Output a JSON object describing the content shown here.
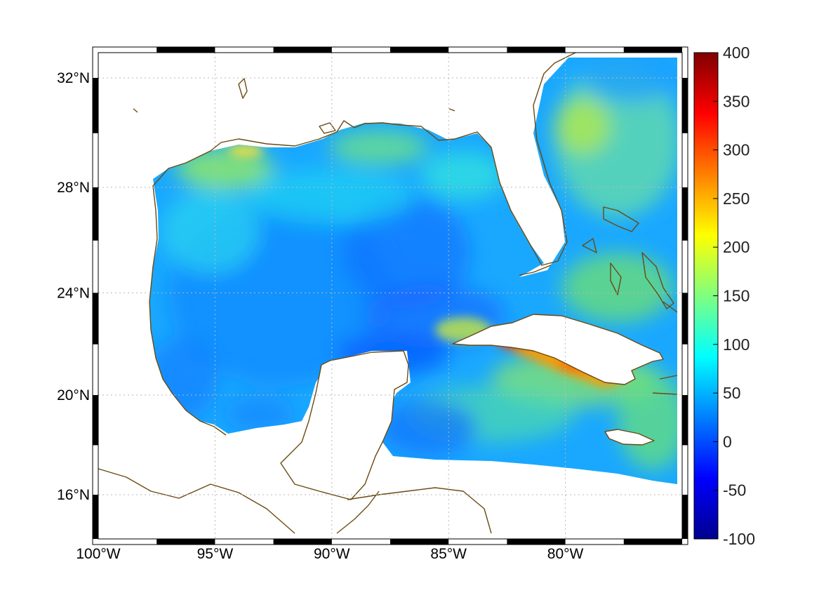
{
  "map": {
    "region": "Gulf of Mexico",
    "lon_range": [
      -100,
      -75
    ],
    "lat_range": [
      14.2,
      32.9
    ],
    "lon_ticks": [
      {
        "value": -100,
        "label": "100°W"
      },
      {
        "value": -95,
        "label": "95°W"
      },
      {
        "value": -90,
        "label": "90°W"
      },
      {
        "value": -85,
        "label": "85°W"
      },
      {
        "value": -80,
        "label": "80°W"
      }
    ],
    "lat_ticks": [
      {
        "value": 16,
        "label": "16°N"
      },
      {
        "value": 20,
        "label": "20°N"
      },
      {
        "value": 24,
        "label": "24°N"
      },
      {
        "value": 28,
        "label": "28°N"
      },
      {
        "value": 32,
        "label": "32°N"
      }
    ],
    "grid": true,
    "colors": {
      "coastline": "#6b4a12",
      "frame": "#000000",
      "background": "#ffffff"
    }
  },
  "colorbar": {
    "colormap": "jet",
    "range": [
      -100,
      400
    ],
    "ticks": [
      "400",
      "350",
      "300",
      "250",
      "200",
      "150",
      "100",
      "50",
      "0",
      "-50",
      "-100"
    ]
  }
}
